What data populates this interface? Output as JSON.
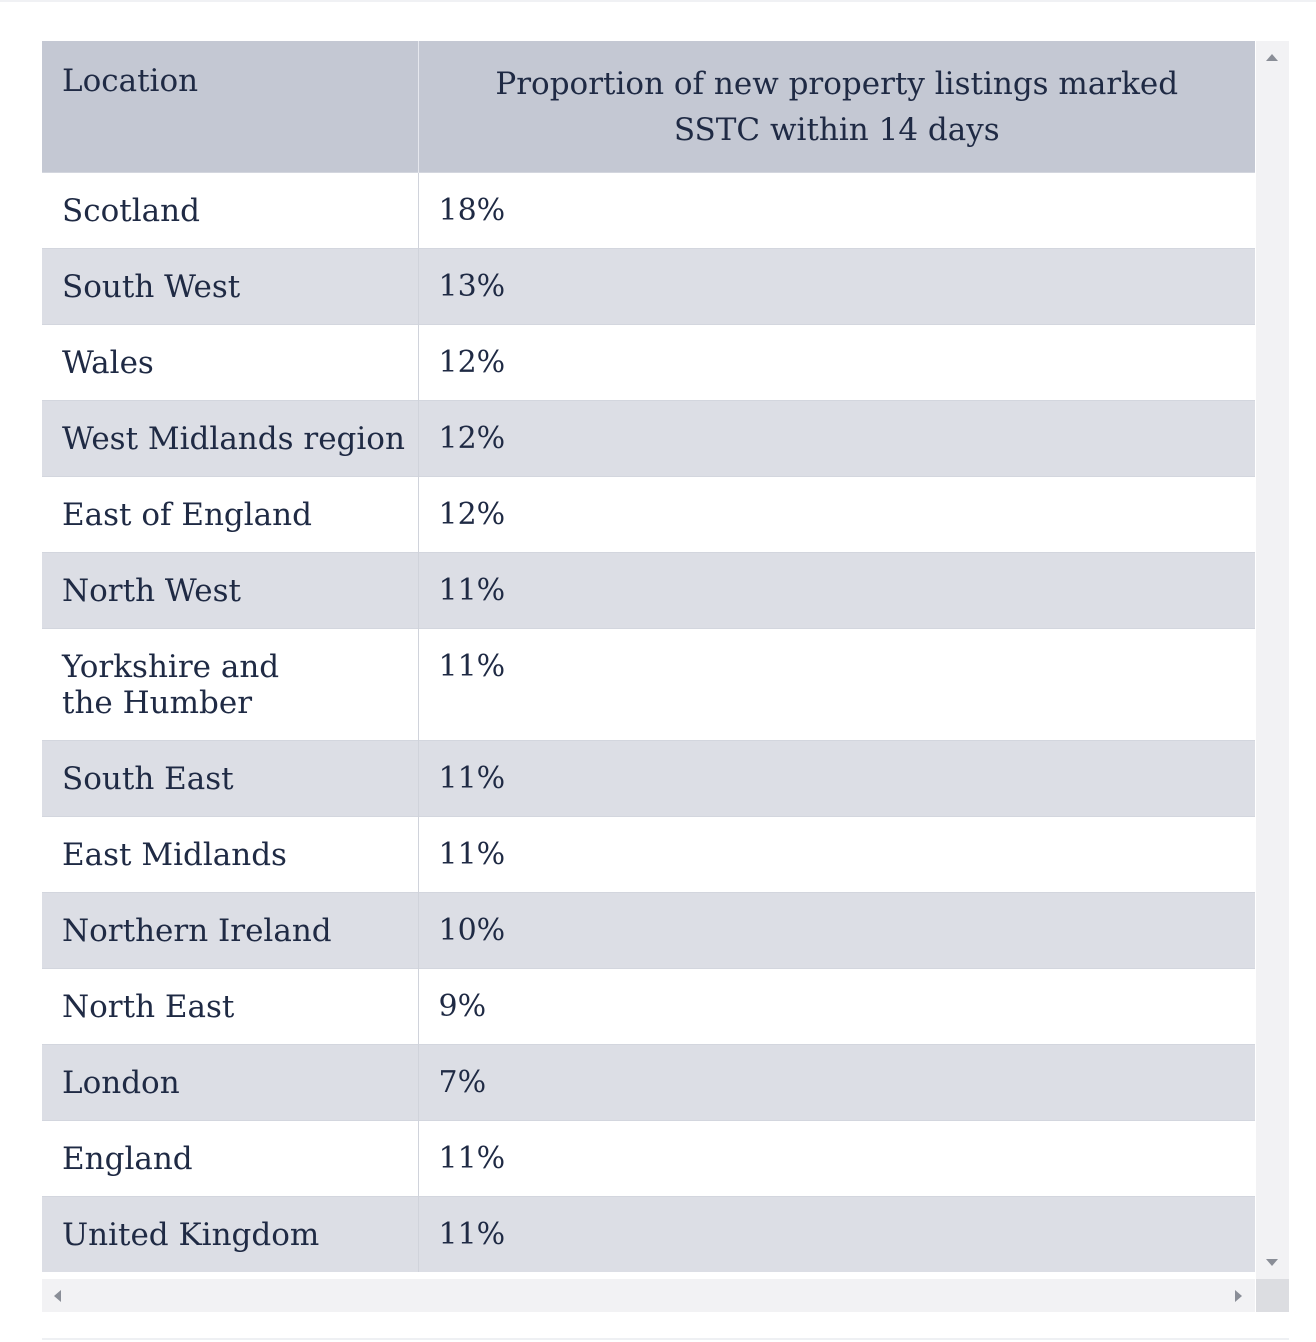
{
  "table": {
    "headers": {
      "location": "Location",
      "proportion": "Proportion of new property listings marked SSTC within 14 days"
    },
    "rows": [
      {
        "location": "Scotland",
        "value": "18%"
      },
      {
        "location": "South West",
        "value": "13%"
      },
      {
        "location": "Wales",
        "value": "12%"
      },
      {
        "location": "West Midlands region",
        "value": "12%"
      },
      {
        "location": "East of England",
        "value": "12%"
      },
      {
        "location": "North West",
        "value": "11%"
      },
      {
        "location": "Yorkshire and the Humber",
        "value": "11%"
      },
      {
        "location": "South East",
        "value": "11%"
      },
      {
        "location": "East Midlands",
        "value": "11%"
      },
      {
        "location": "Northern Ireland",
        "value": "10%"
      },
      {
        "location": "North East",
        "value": "9%"
      },
      {
        "location": "London",
        "value": "7%"
      },
      {
        "location": "England",
        "value": "11%"
      },
      {
        "location": "United Kingdom",
        "value": "11%"
      }
    ]
  },
  "colors": {
    "header_bg": "#c4c8d3",
    "row_alt_bg": "#dcdee5",
    "row_bg": "#ffffff",
    "text": "#1f2a44"
  }
}
